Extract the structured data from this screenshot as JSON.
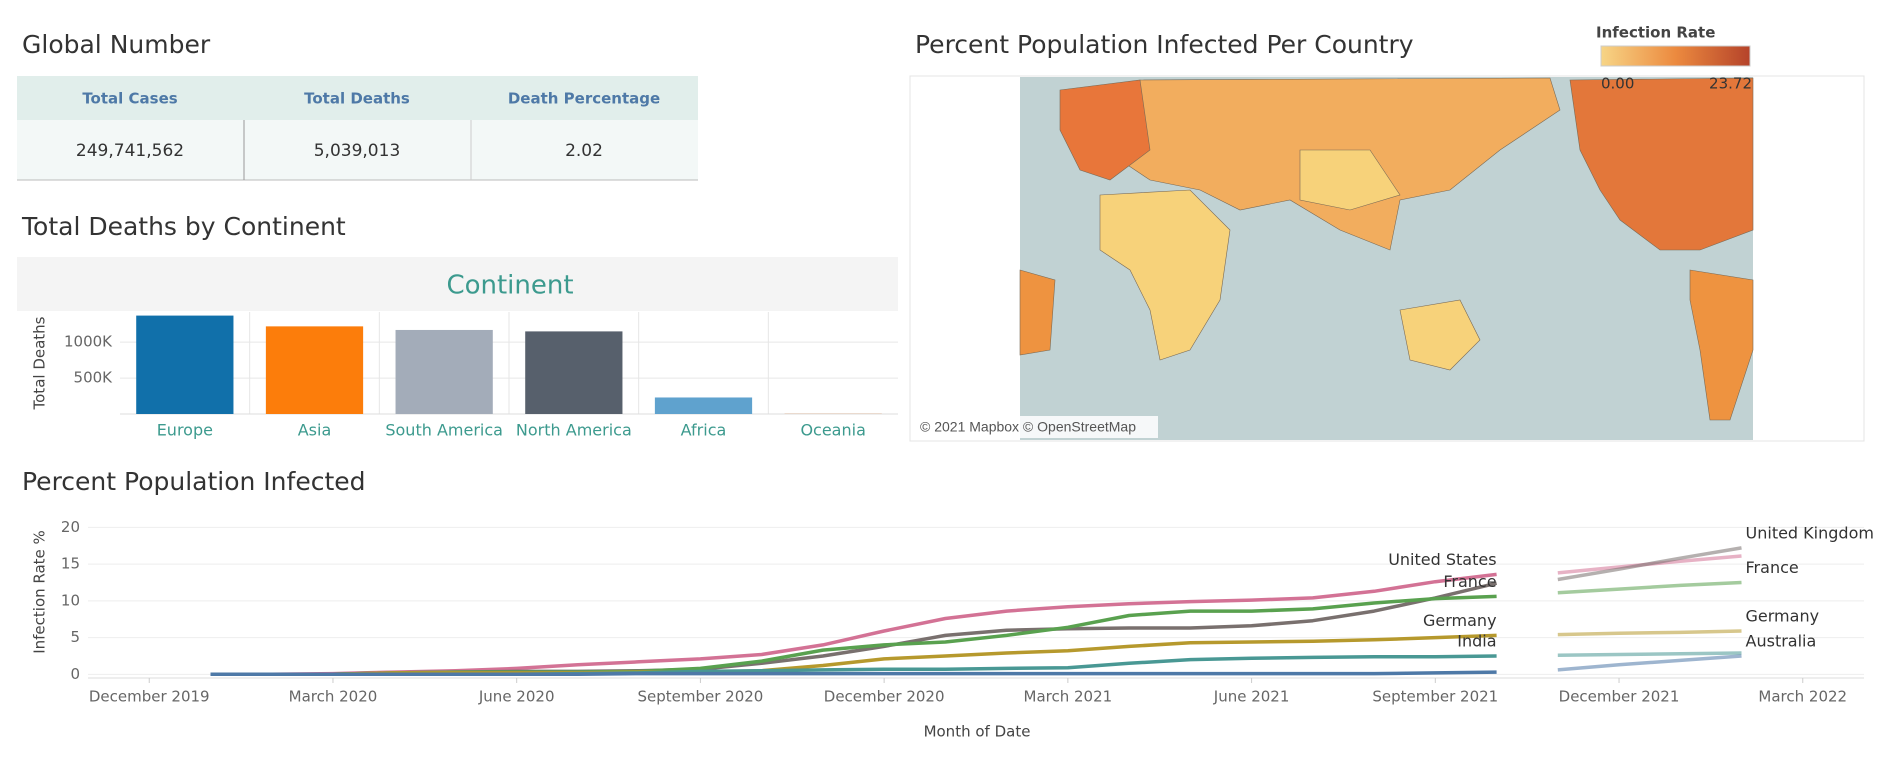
{
  "global_number": {
    "title": "Global Number",
    "columns": [
      "Total Cases",
      "Total Deaths",
      "Death Percentage"
    ],
    "row": [
      "249,741,562",
      "5,039,013",
      "2.02"
    ]
  },
  "map": {
    "title": "Percent Population Infected Per Country",
    "legend_title": "Infection Rate",
    "legend_min": "0.00",
    "legend_max": "23.72",
    "attribution": "© 2021 Mapbox © OpenStreetMap"
  },
  "chart_data": [
    {
      "type": "bar",
      "title": "Total Deaths by Continent",
      "header": "Continent",
      "y_label": "Total Deaths",
      "categories": [
        "Europe",
        "Asia",
        "South America",
        "North America",
        "Africa",
        "Oceania"
      ],
      "values": [
        1370000,
        1220000,
        1170000,
        1150000,
        230000,
        2000
      ],
      "colors": [
        "#1170aa",
        "#fc7d0b",
        "#a3acb9",
        "#57606c",
        "#5fa2ce",
        "#c85200"
      ],
      "ylim": [
        0,
        1420000
      ],
      "yticks": [
        {
          "value": 500000,
          "label": "500K"
        },
        {
          "value": 1000000,
          "label": "1000K"
        }
      ],
      "grid": true
    },
    {
      "type": "line",
      "title": "Percent Population Infected",
      "y_label": "Infection Rate %",
      "x_label": "Month of Date",
      "x": [
        "2020-01",
        "2020-02",
        "2020-03",
        "2020-04",
        "2020-05",
        "2020-06",
        "2020-07",
        "2020-08",
        "2020-09",
        "2020-10",
        "2020-11",
        "2020-12",
        "2021-01",
        "2021-02",
        "2021-03",
        "2021-04",
        "2021-05",
        "2021-06",
        "2021-07",
        "2021-08",
        "2021-09",
        "2021-10"
      ],
      "x_forecast": [
        "2021-11",
        "2021-12",
        "2022-01",
        "2022-02"
      ],
      "xlim": [
        "2019-11",
        "2022-04"
      ],
      "xticks": [
        {
          "value": "2019-12",
          "label": "December 2019"
        },
        {
          "value": "2020-03",
          "label": "March 2020"
        },
        {
          "value": "2020-06",
          "label": "June 2020"
        },
        {
          "value": "2020-09",
          "label": "September 2020"
        },
        {
          "value": "2020-12",
          "label": "December 2020"
        },
        {
          "value": "2021-03",
          "label": "March 2021"
        },
        {
          "value": "2021-06",
          "label": "June 2021"
        },
        {
          "value": "2021-09",
          "label": "September 2021"
        },
        {
          "value": "2021-12",
          "label": "December 2021"
        },
        {
          "value": "2022-03",
          "label": "March 2022"
        }
      ],
      "ylim": [
        -0.5,
        21
      ],
      "yticks": [
        0,
        5,
        10,
        15,
        20
      ],
      "grid": true,
      "series": [
        {
          "name": "United States",
          "color": "#d37295",
          "label_history": true,
          "label_forecast": false,
          "values": [
            0,
            0,
            0.1,
            0.3,
            0.5,
            0.8,
            1.3,
            1.7,
            2.1,
            2.7,
            4.0,
            5.9,
            7.6,
            8.6,
            9.2,
            9.6,
            9.9,
            10.1,
            10.4,
            11.3,
            12.6,
            13.6
          ],
          "forecast": [
            13.8,
            14.6,
            15.4,
            16.1
          ]
        },
        {
          "name": "United Kingdom",
          "color": "#79706e",
          "label_history": false,
          "label_forecast": true,
          "values": [
            0,
            0,
            0,
            0.2,
            0.3,
            0.4,
            0.4,
            0.5,
            0.7,
            1.5,
            2.5,
            3.8,
            5.3,
            6.0,
            6.2,
            6.3,
            6.3,
            6.6,
            7.3,
            8.6,
            10.4,
            12.4
          ],
          "forecast": [
            12.9,
            14.3,
            15.8,
            17.2
          ]
        },
        {
          "name": "France",
          "color": "#59a14f",
          "label_history": true,
          "label_forecast": true,
          "values": [
            0,
            0,
            0,
            0.2,
            0.3,
            0.3,
            0.3,
            0.4,
            0.8,
            1.8,
            3.3,
            4.0,
            4.4,
            5.3,
            6.4,
            8.0,
            8.6,
            8.6,
            8.9,
            9.7,
            10.3,
            10.6
          ],
          "forecast": [
            11.1,
            11.6,
            12.1,
            12.5
          ]
        },
        {
          "name": "Germany",
          "color": "#b6992d",
          "label_history": true,
          "label_forecast": true,
          "values": [
            0,
            0,
            0,
            0.2,
            0.2,
            0.2,
            0.2,
            0.3,
            0.3,
            0.5,
            1.2,
            2.1,
            2.5,
            2.9,
            3.2,
            3.8,
            4.3,
            4.4,
            4.5,
            4.7,
            5.0,
            5.3
          ],
          "forecast": [
            5.4,
            5.6,
            5.7,
            5.9
          ]
        },
        {
          "name": "India",
          "color": "#499894",
          "label_history": true,
          "label_forecast": false,
          "values": [
            0,
            0,
            0,
            0,
            0,
            0,
            0.1,
            0.2,
            0.4,
            0.5,
            0.6,
            0.7,
            0.7,
            0.8,
            0.9,
            1.5,
            2.0,
            2.2,
            2.3,
            2.4,
            2.4,
            2.5
          ],
          "forecast": [
            2.6,
            2.7,
            2.8,
            2.9
          ]
        },
        {
          "name": "Australia",
          "color": "#4e79a7",
          "label_history": false,
          "label_forecast": true,
          "values": [
            0,
            0,
            0,
            0,
            0,
            0,
            0,
            0.1,
            0.1,
            0.1,
            0.1,
            0.1,
            0.1,
            0.1,
            0.1,
            0.1,
            0.1,
            0.1,
            0.1,
            0.1,
            0.2,
            0.3
          ],
          "forecast": [
            0.6,
            1.3,
            1.9,
            2.5
          ]
        }
      ]
    }
  ]
}
